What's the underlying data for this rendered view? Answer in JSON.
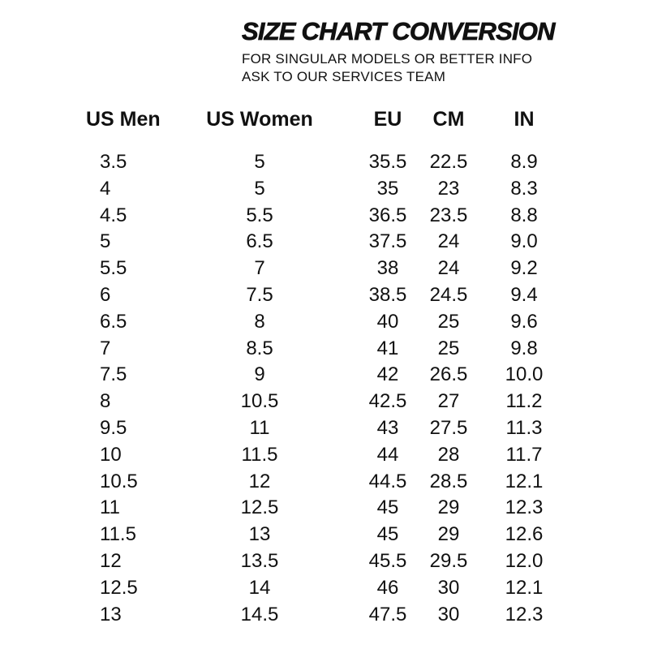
{
  "header": {
    "title": "SIZE CHART CONVERSION",
    "subtitle_line1": "FOR SINGULAR MODELS OR BETTER INFO",
    "subtitle_line2": "ASK TO OUR SERVICES TEAM"
  },
  "colors": {
    "text": "#111111",
    "background": "#ffffff"
  },
  "chart_data": {
    "type": "table",
    "title": "SIZE CHART CONVERSION",
    "columns": [
      "US Men",
      "US Women",
      "EU",
      "CM",
      "IN"
    ],
    "rows": [
      [
        "3.5",
        "5",
        "35.5",
        "22.5",
        "8.9"
      ],
      [
        "4",
        "5",
        "35",
        "23",
        "8.3"
      ],
      [
        "4.5",
        "5.5",
        "36.5",
        "23.5",
        "8.8"
      ],
      [
        "5",
        "6.5",
        "37.5",
        "24",
        "9.0"
      ],
      [
        "5.5",
        "7",
        "38",
        "24",
        "9.2"
      ],
      [
        "6",
        "7.5",
        "38.5",
        "24.5",
        "9.4"
      ],
      [
        "6.5",
        "8",
        "40",
        "25",
        "9.6"
      ],
      [
        "7",
        "8.5",
        "41",
        "25",
        "9.8"
      ],
      [
        "7.5",
        "9",
        "42",
        "26.5",
        "10.0"
      ],
      [
        "8",
        "10.5",
        "42.5",
        "27",
        "11.2"
      ],
      [
        "9.5",
        "11",
        "43",
        "27.5",
        "11.3"
      ],
      [
        "10",
        "11.5",
        "44",
        "28",
        "11.7"
      ],
      [
        "10.5",
        "12",
        "44.5",
        "28.5",
        "12.1"
      ],
      [
        "11",
        "12.5",
        "45",
        "29",
        "12.3"
      ],
      [
        "11.5",
        "13",
        "45",
        "29",
        "12.6"
      ],
      [
        "12",
        "13.5",
        "45.5",
        "29.5",
        "12.0"
      ],
      [
        "12.5",
        "14",
        "46",
        "30",
        "12.1"
      ],
      [
        "13",
        "14.5",
        "47.5",
        "30",
        "12.3"
      ]
    ]
  }
}
